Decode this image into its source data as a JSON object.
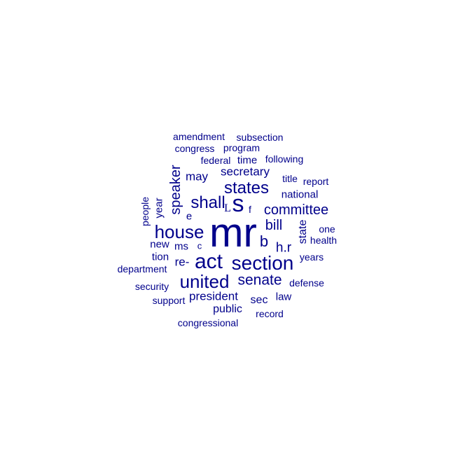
{
  "word_color": "#00008b",
  "background": "#ffffff",
  "words": [
    {
      "text": "mr",
      "size": 58,
      "vertical": false
    },
    {
      "text": "act",
      "size": 30,
      "vertical": false
    },
    {
      "text": "section",
      "size": 28,
      "vertical": false
    },
    {
      "text": "united",
      "size": 26,
      "vertical": false
    },
    {
      "text": "house",
      "size": 26,
      "vertical": false
    },
    {
      "text": "states",
      "size": 24,
      "vertical": false
    },
    {
      "text": "shall",
      "size": 24,
      "vertical": false
    },
    {
      "text": "s",
      "size": 34,
      "vertical": false
    },
    {
      "text": "L",
      "size": 16,
      "vertical": false
    },
    {
      "text": "senate",
      "size": 21,
      "vertical": false
    },
    {
      "text": "committee",
      "size": 20,
      "vertical": false
    },
    {
      "text": "speaker",
      "size": 20,
      "vertical": true
    },
    {
      "text": "bill",
      "size": 20,
      "vertical": false
    },
    {
      "text": "b",
      "size": 22,
      "vertical": false
    },
    {
      "text": "h.r",
      "size": 19,
      "vertical": false
    },
    {
      "text": "president",
      "size": 17,
      "vertical": false
    },
    {
      "text": "secretary",
      "size": 17,
      "vertical": false
    },
    {
      "text": "may",
      "size": 17,
      "vertical": false
    },
    {
      "text": "re-",
      "size": 17,
      "vertical": false
    },
    {
      "text": "public",
      "size": 16,
      "vertical": false
    },
    {
      "text": "sec",
      "size": 16,
      "vertical": false
    },
    {
      "text": "state",
      "size": 16,
      "vertical": true
    },
    {
      "text": "national",
      "size": 15,
      "vertical": false
    },
    {
      "text": "time",
      "size": 15,
      "vertical": false
    },
    {
      "text": "ms",
      "size": 15,
      "vertical": false
    },
    {
      "text": "new",
      "size": 15,
      "vertical": false
    },
    {
      "text": "tion",
      "size": 15,
      "vertical": false
    },
    {
      "text": "law",
      "size": 15,
      "vertical": false
    },
    {
      "text": "e",
      "size": 15,
      "vertical": false
    },
    {
      "text": "year",
      "size": 15,
      "vertical": true
    },
    {
      "text": "congressional",
      "size": 14,
      "vertical": false
    },
    {
      "text": "record",
      "size": 14,
      "vertical": false
    },
    {
      "text": "defense",
      "size": 14,
      "vertical": false
    },
    {
      "text": "support",
      "size": 14,
      "vertical": false
    },
    {
      "text": "security",
      "size": 14,
      "vertical": false
    },
    {
      "text": "department",
      "size": 14,
      "vertical": false
    },
    {
      "text": "years",
      "size": 14,
      "vertical": false
    },
    {
      "text": "health",
      "size": 14,
      "vertical": false
    },
    {
      "text": "one",
      "size": 14,
      "vertical": false
    },
    {
      "text": "report",
      "size": 14,
      "vertical": false
    },
    {
      "text": "title",
      "size": 14,
      "vertical": false
    },
    {
      "text": "federal",
      "size": 14,
      "vertical": false
    },
    {
      "text": "following",
      "size": 14,
      "vertical": false
    },
    {
      "text": "program",
      "size": 14,
      "vertical": false
    },
    {
      "text": "congress",
      "size": 14,
      "vertical": false
    },
    {
      "text": "subsection",
      "size": 14,
      "vertical": false
    },
    {
      "text": "amendment",
      "size": 14,
      "vertical": false
    },
    {
      "text": "people",
      "size": 14,
      "vertical": true
    },
    {
      "text": "f",
      "size": 14,
      "vertical": false
    },
    {
      "text": "c",
      "size": 13,
      "vertical": false
    }
  ]
}
